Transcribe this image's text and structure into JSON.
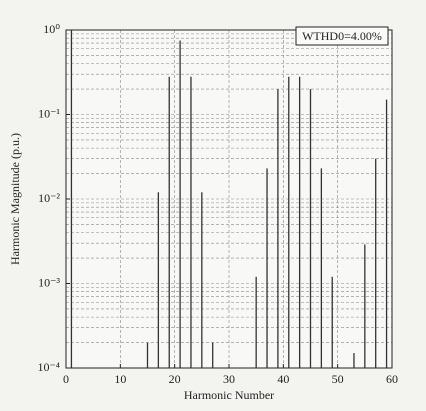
{
  "chart_data": {
    "type": "stem",
    "xlabel": "Harmonic Number",
    "ylabel": "Harmonic Magnitude (p.u.)",
    "annotation": "WTHD0=4.00%",
    "x": [
      1,
      15,
      17,
      19,
      21,
      23,
      25,
      27,
      35,
      37,
      39,
      41,
      43,
      45,
      47,
      49,
      53,
      55,
      57,
      59
    ],
    "values": [
      1,
      0.0002,
      0.012,
      0.28,
      0.75,
      0.28,
      0.012,
      0.0002,
      0.0012,
      0.023,
      0.2,
      0.28,
      0.28,
      0.2,
      0.023,
      0.0012,
      0.00015,
      0.0029,
      0.03,
      0.15
    ],
    "color": "#333333",
    "xlim": [
      0,
      60
    ],
    "xticks": [
      0,
      10,
      20,
      30,
      40,
      50,
      60
    ],
    "ylim": [
      0.0001,
      1
    ],
    "yticks": [
      {
        "value": 0.0001,
        "label": "10⁻⁴"
      },
      {
        "value": 0.001,
        "label": "10⁻³"
      },
      {
        "value": 0.01,
        "label": "10⁻²"
      },
      {
        "value": 0.1,
        "label": "10⁻¹"
      },
      {
        "value": 1,
        "label": "10⁰"
      }
    ],
    "log_y": true,
    "grid": true,
    "minor_grid": true
  }
}
